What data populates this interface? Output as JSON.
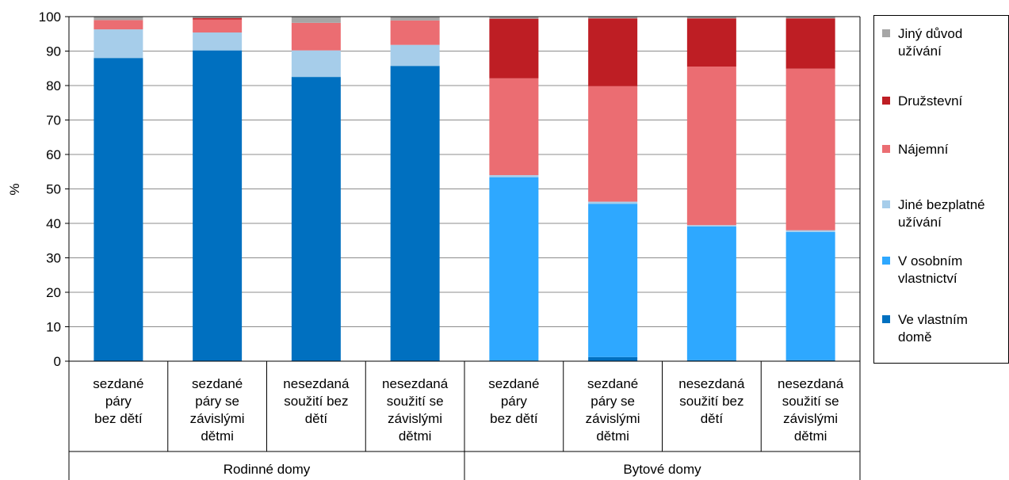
{
  "chart_data": {
    "type": "bar",
    "stacked": true,
    "ylabel": "%",
    "ylim": [
      0,
      100
    ],
    "yticks": [
      0,
      10,
      20,
      30,
      40,
      50,
      60,
      70,
      80,
      90,
      100
    ],
    "grid": true,
    "legend_position": "right",
    "groups": [
      {
        "label": "Rodinné domy",
        "categories": [
          "sezdané\npáry\nbez dětí",
          "sezdané\npáry se\nzávislými\ndětmi",
          "nesezdaná\nsoužití bez\ndětí",
          "nesezdaná\nsoužití se\nzávislými\ndětmi"
        ]
      },
      {
        "label": "Bytové domy",
        "categories": [
          "sezdané\npáry\nbez dětí",
          "sezdané\npáry se\nzávislými\ndětmi",
          "nesezdaná\nsoužití bez\ndětí",
          "nesezdaná\nsoužití se\nzávislými\ndětmi"
        ]
      }
    ],
    "series": [
      {
        "name": "Ve vlastním domě",
        "color": "#0070c0",
        "values": [
          88,
          90.2,
          82.5,
          85.7,
          0.2,
          1.2,
          0.3,
          0.3
        ]
      },
      {
        "name": "V osobním vlastnictví",
        "color": "#2ea8ff",
        "values": [
          0,
          0,
          0,
          0,
          53.2,
          44.5,
          38.8,
          37.2
        ]
      },
      {
        "name": "Jiné bezplatné užívání",
        "color": "#a6cdea",
        "values": [
          8.3,
          5.2,
          7.7,
          6.1,
          0.6,
          0.6,
          0.4,
          0.5
        ]
      },
      {
        "name": "Nájemní",
        "color": "#eb6d72",
        "values": [
          2.7,
          3.8,
          8.0,
          7.1,
          28.1,
          33.5,
          46.0,
          46.9
        ]
      },
      {
        "name": "Družstevní",
        "color": "#be1e24",
        "values": [
          0,
          0.4,
          0,
          0,
          17.3,
          19.7,
          14.0,
          14.6
        ]
      },
      {
        "name": "Jiný důvod užívání",
        "color": "#a6a6a6",
        "values": [
          1.0,
          0.4,
          1.8,
          1.1,
          0.6,
          0.5,
          0.5,
          0.5
        ]
      }
    ]
  },
  "legend": {
    "items": [
      {
        "name": "Jiný důvod\nužívání",
        "color": "#a6a6a6"
      },
      {
        "name": "Družstevní",
        "color": "#be1e24"
      },
      {
        "name": "Nájemní",
        "color": "#eb6d72"
      },
      {
        "name": "Jiné bezplatné\nužívání",
        "color": "#a6cdea"
      },
      {
        "name": "V osobním\nvlastnictví",
        "color": "#2ea8ff"
      },
      {
        "name": "Ve vlastním\ndomě",
        "color": "#0070c0"
      }
    ]
  }
}
